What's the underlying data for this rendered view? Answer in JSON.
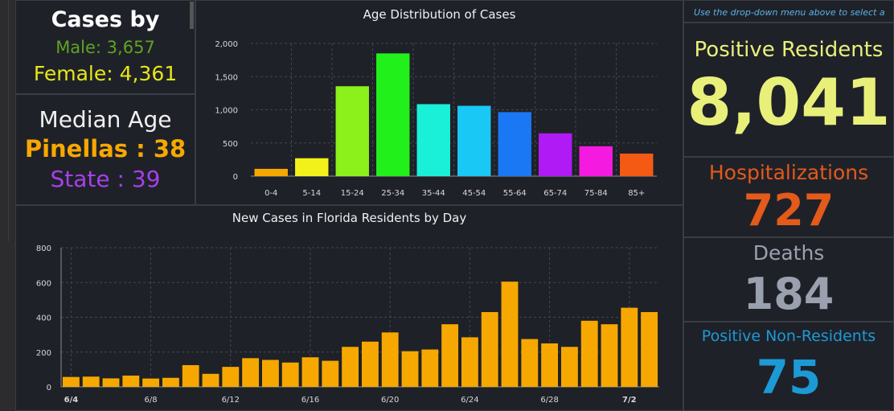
{
  "sex": {
    "title": "Cases by",
    "male": "Male: 3,657",
    "female": "Female: 4,361"
  },
  "median": {
    "title": "Median Age",
    "pinellas": "Pinellas : 38",
    "state": "State : 39"
  },
  "note": "Use the drop-down menu above to select a",
  "positive": {
    "label": "Positive Residents",
    "value": "8,041"
  },
  "hosp": {
    "label": "Hospitalizations",
    "value": "727"
  },
  "deaths": {
    "label": "Deaths",
    "value": "184"
  },
  "nonres": {
    "label": "Positive Non-Residents",
    "value": "75"
  },
  "colors": {
    "positive": "#e8f07a",
    "hosp": "#e35a1a",
    "deaths": "#9aa0ad",
    "nonres": "#1b9ad6",
    "daily_bar": "#f7a800",
    "male": "#5fa320",
    "female": "#e6e61a",
    "state": "#a640ea"
  },
  "chart_data": [
    {
      "type": "bar",
      "title": "Age Distribution of Cases",
      "categories": [
        "0-4",
        "5-14",
        "15-24",
        "25-34",
        "35-44",
        "45-54",
        "55-64",
        "65-74",
        "75-84",
        "85+"
      ],
      "values": [
        110,
        270,
        1355,
        1850,
        1085,
        1060,
        965,
        645,
        450,
        340
      ],
      "colors": [
        "#f7a800",
        "#f2f21a",
        "#8cf01a",
        "#22f01a",
        "#1af0d8",
        "#1ac8f5",
        "#1a78f5",
        "#b01af5",
        "#f51ae0",
        "#f55a14"
      ],
      "ylim": [
        0,
        2000
      ],
      "yticks": [
        "0",
        "500",
        "1,000",
        "1,500",
        "2,000"
      ],
      "grid": true
    },
    {
      "type": "bar",
      "title": "New Cases in Florida Residents by Day",
      "values": [
        57,
        59,
        49,
        65,
        48,
        52,
        125,
        75,
        115,
        165,
        155,
        140,
        170,
        150,
        230,
        260,
        313,
        205,
        215,
        360,
        285,
        430,
        605,
        275,
        250,
        230,
        380,
        360,
        455,
        430
      ],
      "xticks": [
        {
          "index": 0,
          "label": "6/4",
          "bold": true
        },
        {
          "index": 4,
          "label": "6/8",
          "bold": false
        },
        {
          "index": 8,
          "label": "6/12",
          "bold": false
        },
        {
          "index": 12,
          "label": "6/16",
          "bold": false
        },
        {
          "index": 16,
          "label": "6/20",
          "bold": false
        },
        {
          "index": 20,
          "label": "6/24",
          "bold": false
        },
        {
          "index": 24,
          "label": "6/28",
          "bold": false
        },
        {
          "index": 28,
          "label": "7/2",
          "bold": true
        }
      ],
      "ylim": [
        0,
        800
      ],
      "yticks": [
        "0",
        "200",
        "400",
        "600",
        "800"
      ],
      "grid": true
    }
  ]
}
